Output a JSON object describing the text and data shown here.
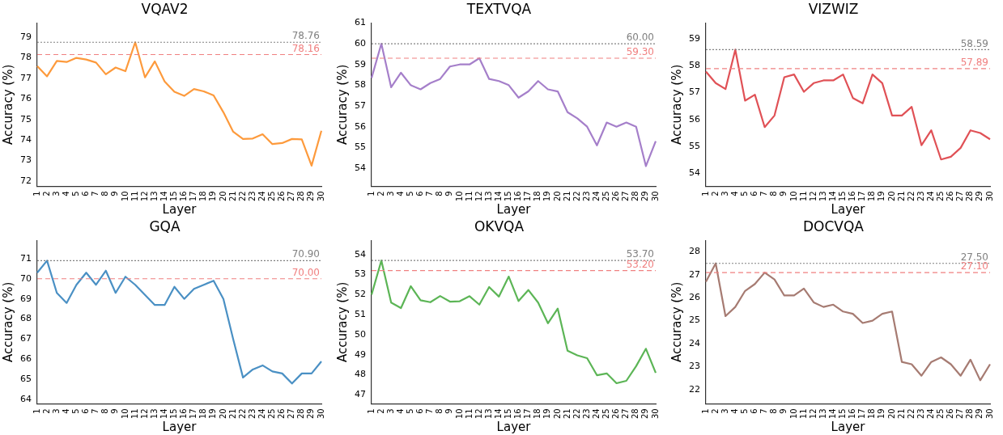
{
  "chart_data": [
    {
      "type": "line",
      "title": "VQAV2",
      "xlabel": "Layer",
      "ylabel": "Accuracy (%)",
      "categories": [
        "1",
        "2",
        "3",
        "4",
        "5",
        "6",
        "7",
        "8",
        "9",
        "10",
        "11",
        "12",
        "13",
        "14",
        "15",
        "16",
        "17",
        "18",
        "19",
        "20",
        "21",
        "22",
        "23",
        "24",
        "25",
        "26",
        "27",
        "28",
        "29",
        "30"
      ],
      "series": [
        {
          "color": "#fd9a3c",
          "values": [
            77.6,
            77.1,
            77.85,
            77.8,
            78.0,
            77.92,
            77.77,
            77.2,
            77.53,
            77.35,
            78.76,
            77.05,
            77.83,
            76.85,
            76.35,
            76.15,
            76.48,
            76.37,
            76.17,
            75.35,
            74.4,
            74.05,
            74.07,
            74.28,
            73.8,
            73.85,
            74.05,
            74.03,
            72.75,
            74.45
          ]
        }
      ],
      "ylim": [
        71.75,
        79.7
      ],
      "yticks": [
        72,
        73,
        74,
        75,
        76,
        77,
        78,
        79
      ],
      "grid": false,
      "marker": "none",
      "line_style": "solid",
      "ref_lines": [
        {
          "axis": "y",
          "value": 78.76,
          "label": "78.76",
          "color": "#808080",
          "line_style": "dotted"
        },
        {
          "axis": "y",
          "value": 78.16,
          "label": "78.16",
          "color": "#f08080",
          "line_style": "dashed"
        }
      ]
    },
    {
      "type": "line",
      "title": "TEXTVQA",
      "xlabel": "Layer",
      "ylabel": "Accuracy (%)",
      "categories": [
        "1",
        "2",
        "3",
        "4",
        "5",
        "6",
        "7",
        "8",
        "9",
        "10",
        "11",
        "12",
        "13",
        "14",
        "15",
        "16",
        "17",
        "18",
        "19",
        "20",
        "21",
        "22",
        "23",
        "24",
        "25",
        "26",
        "27",
        "28",
        "29",
        "30"
      ],
      "series": [
        {
          "color": "#a57fca",
          "values": [
            58.35,
            60.0,
            57.9,
            58.6,
            58.0,
            57.8,
            58.1,
            58.3,
            58.9,
            59.0,
            59.0,
            59.3,
            58.3,
            58.2,
            58.0,
            57.4,
            57.7,
            58.2,
            57.8,
            57.7,
            56.7,
            56.4,
            56.0,
            55.1,
            56.2,
            56.0,
            56.2,
            56.0,
            54.1,
            55.3
          ]
        }
      ],
      "ylim": [
        53.13,
        61
      ],
      "yticks": [
        54,
        55,
        56,
        57,
        58,
        59,
        60,
        61
      ],
      "grid": false,
      "marker": "none",
      "line_style": "solid",
      "ref_lines": [
        {
          "axis": "y",
          "value": 60.0,
          "label": "60.00",
          "color": "#808080",
          "line_style": "dotted"
        },
        {
          "axis": "y",
          "value": 59.3,
          "label": "59.30",
          "color": "#f08080",
          "line_style": "dashed"
        }
      ]
    },
    {
      "type": "line",
      "title": "VIZWIZ",
      "xlabel": "Layer",
      "ylabel": "Accuracy (%)",
      "categories": [
        "1",
        "2",
        "3",
        "4",
        "5",
        "6",
        "7",
        "8",
        "9",
        "10",
        "11",
        "12",
        "13",
        "14",
        "15",
        "16",
        "17",
        "18",
        "19",
        "20",
        "21",
        "22",
        "23",
        "24",
        "25",
        "26",
        "27",
        "28",
        "29",
        "30"
      ],
      "series": [
        {
          "color": "#e05156",
          "values": [
            57.78,
            57.35,
            57.13,
            58.59,
            56.7,
            56.92,
            55.72,
            56.15,
            57.57,
            57.67,
            57.03,
            57.35,
            57.45,
            57.45,
            57.67,
            56.8,
            56.6,
            57.67,
            57.35,
            56.15,
            56.15,
            56.47,
            55.05,
            55.6,
            54.52,
            54.62,
            54.95,
            55.6,
            55.5,
            55.27
          ]
        }
      ],
      "ylim": [
        53.53,
        59.58
      ],
      "yticks": [
        54,
        55,
        56,
        57,
        58,
        59
      ],
      "grid": false,
      "marker": "none",
      "line_style": "solid",
      "ref_lines": [
        {
          "axis": "y",
          "value": 58.59,
          "label": "58.59",
          "color": "#808080",
          "line_style": "dotted"
        },
        {
          "axis": "y",
          "value": 57.89,
          "label": "57.89",
          "color": "#f08080",
          "line_style": "dashed"
        }
      ]
    },
    {
      "type": "line",
      "title": "GQA",
      "xlabel": "Layer",
      "ylabel": "Accuracy (%)",
      "categories": [
        "1",
        "2",
        "3",
        "4",
        "5",
        "6",
        "7",
        "8",
        "9",
        "10",
        "11",
        "12",
        "13",
        "14",
        "15",
        "16",
        "17",
        "18",
        "19",
        "20",
        "21",
        "22",
        "23",
        "24",
        "25",
        "26",
        "27",
        "28",
        "29",
        "30"
      ],
      "series": [
        {
          "color": "#4a90c4",
          "values": [
            70.3,
            70.9,
            69.3,
            68.8,
            69.7,
            70.3,
            69.7,
            70.4,
            69.3,
            70.1,
            69.7,
            69.2,
            68.7,
            68.7,
            69.6,
            69.0,
            69.5,
            69.7,
            69.9,
            69.0,
            67.0,
            65.1,
            65.5,
            65.7,
            65.4,
            65.3,
            64.8,
            65.3,
            65.3,
            65.9
          ]
        }
      ],
      "ylim": [
        63.8,
        71.9
      ],
      "yticks": [
        64,
        65,
        66,
        67,
        68,
        69,
        70,
        71
      ],
      "grid": false,
      "marker": "none",
      "line_style": "solid",
      "ref_lines": [
        {
          "axis": "y",
          "value": 70.9,
          "label": "70.90",
          "color": "#808080",
          "line_style": "dotted"
        },
        {
          "axis": "y",
          "value": 70.0,
          "label": "70.00",
          "color": "#f08080",
          "line_style": "dashed"
        }
      ]
    },
    {
      "type": "line",
      "title": "OKVQA",
      "xlabel": "Layer",
      "ylabel": "Accuracy (%)",
      "categories": [
        "1",
        "2",
        "3",
        "4",
        "5",
        "6",
        "7",
        "8",
        "9",
        "10",
        "11",
        "12",
        "13",
        "14",
        "15",
        "16",
        "17",
        "18",
        "19",
        "20",
        "21",
        "22",
        "23",
        "24",
        "25",
        "26",
        "27",
        "28",
        "29",
        "30"
      ],
      "series": [
        {
          "color": "#5cb556",
          "values": [
            52.0,
            53.7,
            51.6,
            51.33,
            52.42,
            51.72,
            51.62,
            51.93,
            51.65,
            51.67,
            51.92,
            51.5,
            52.38,
            51.9,
            52.9,
            51.68,
            52.23,
            51.6,
            50.57,
            51.3,
            49.2,
            48.97,
            48.83,
            47.98,
            48.07,
            47.58,
            47.7,
            48.43,
            49.3,
            48.1
          ]
        }
      ],
      "ylim": [
        46.56,
        54.7
      ],
      "yticks": [
        47,
        48,
        49,
        50,
        51,
        52,
        53,
        54
      ],
      "grid": false,
      "marker": "none",
      "line_style": "solid",
      "ref_lines": [
        {
          "axis": "y",
          "value": 53.7,
          "label": "53.70",
          "color": "#808080",
          "line_style": "dotted"
        },
        {
          "axis": "y",
          "value": 53.2,
          "label": "53.20",
          "color": "#f08080",
          "line_style": "dashed"
        }
      ]
    },
    {
      "type": "line",
      "title": "DOCVQA",
      "xlabel": "Layer",
      "ylabel": "Accuracy (%)",
      "categories": [
        "1",
        "2",
        "3",
        "4",
        "5",
        "6",
        "7",
        "8",
        "9",
        "10",
        "11",
        "12",
        "13",
        "14",
        "15",
        "16",
        "17",
        "18",
        "19",
        "20",
        "21",
        "22",
        "23",
        "24",
        "25",
        "26",
        "27",
        "28",
        "29",
        "30"
      ],
      "series": [
        {
          "color": "#a67b72",
          "values": [
            26.7,
            27.5,
            25.2,
            25.6,
            26.3,
            26.6,
            27.1,
            26.8,
            26.1,
            26.1,
            26.4,
            25.8,
            25.6,
            25.7,
            25.4,
            25.3,
            24.9,
            25.0,
            25.3,
            25.4,
            23.2,
            23.1,
            22.6,
            23.2,
            23.4,
            23.1,
            22.6,
            23.3,
            22.4,
            23.1
          ]
        }
      ],
      "ylim": [
        21.38,
        28.5
      ],
      "yticks": [
        22,
        23,
        24,
        25,
        26,
        27,
        28
      ],
      "grid": false,
      "marker": "none",
      "line_style": "solid",
      "ref_lines": [
        {
          "axis": "y",
          "value": 27.5,
          "label": "27.50",
          "color": "#808080",
          "line_style": "dotted"
        },
        {
          "axis": "y",
          "value": 27.1,
          "label": "27.10",
          "color": "#f08080",
          "line_style": "dashed"
        }
      ]
    }
  ]
}
